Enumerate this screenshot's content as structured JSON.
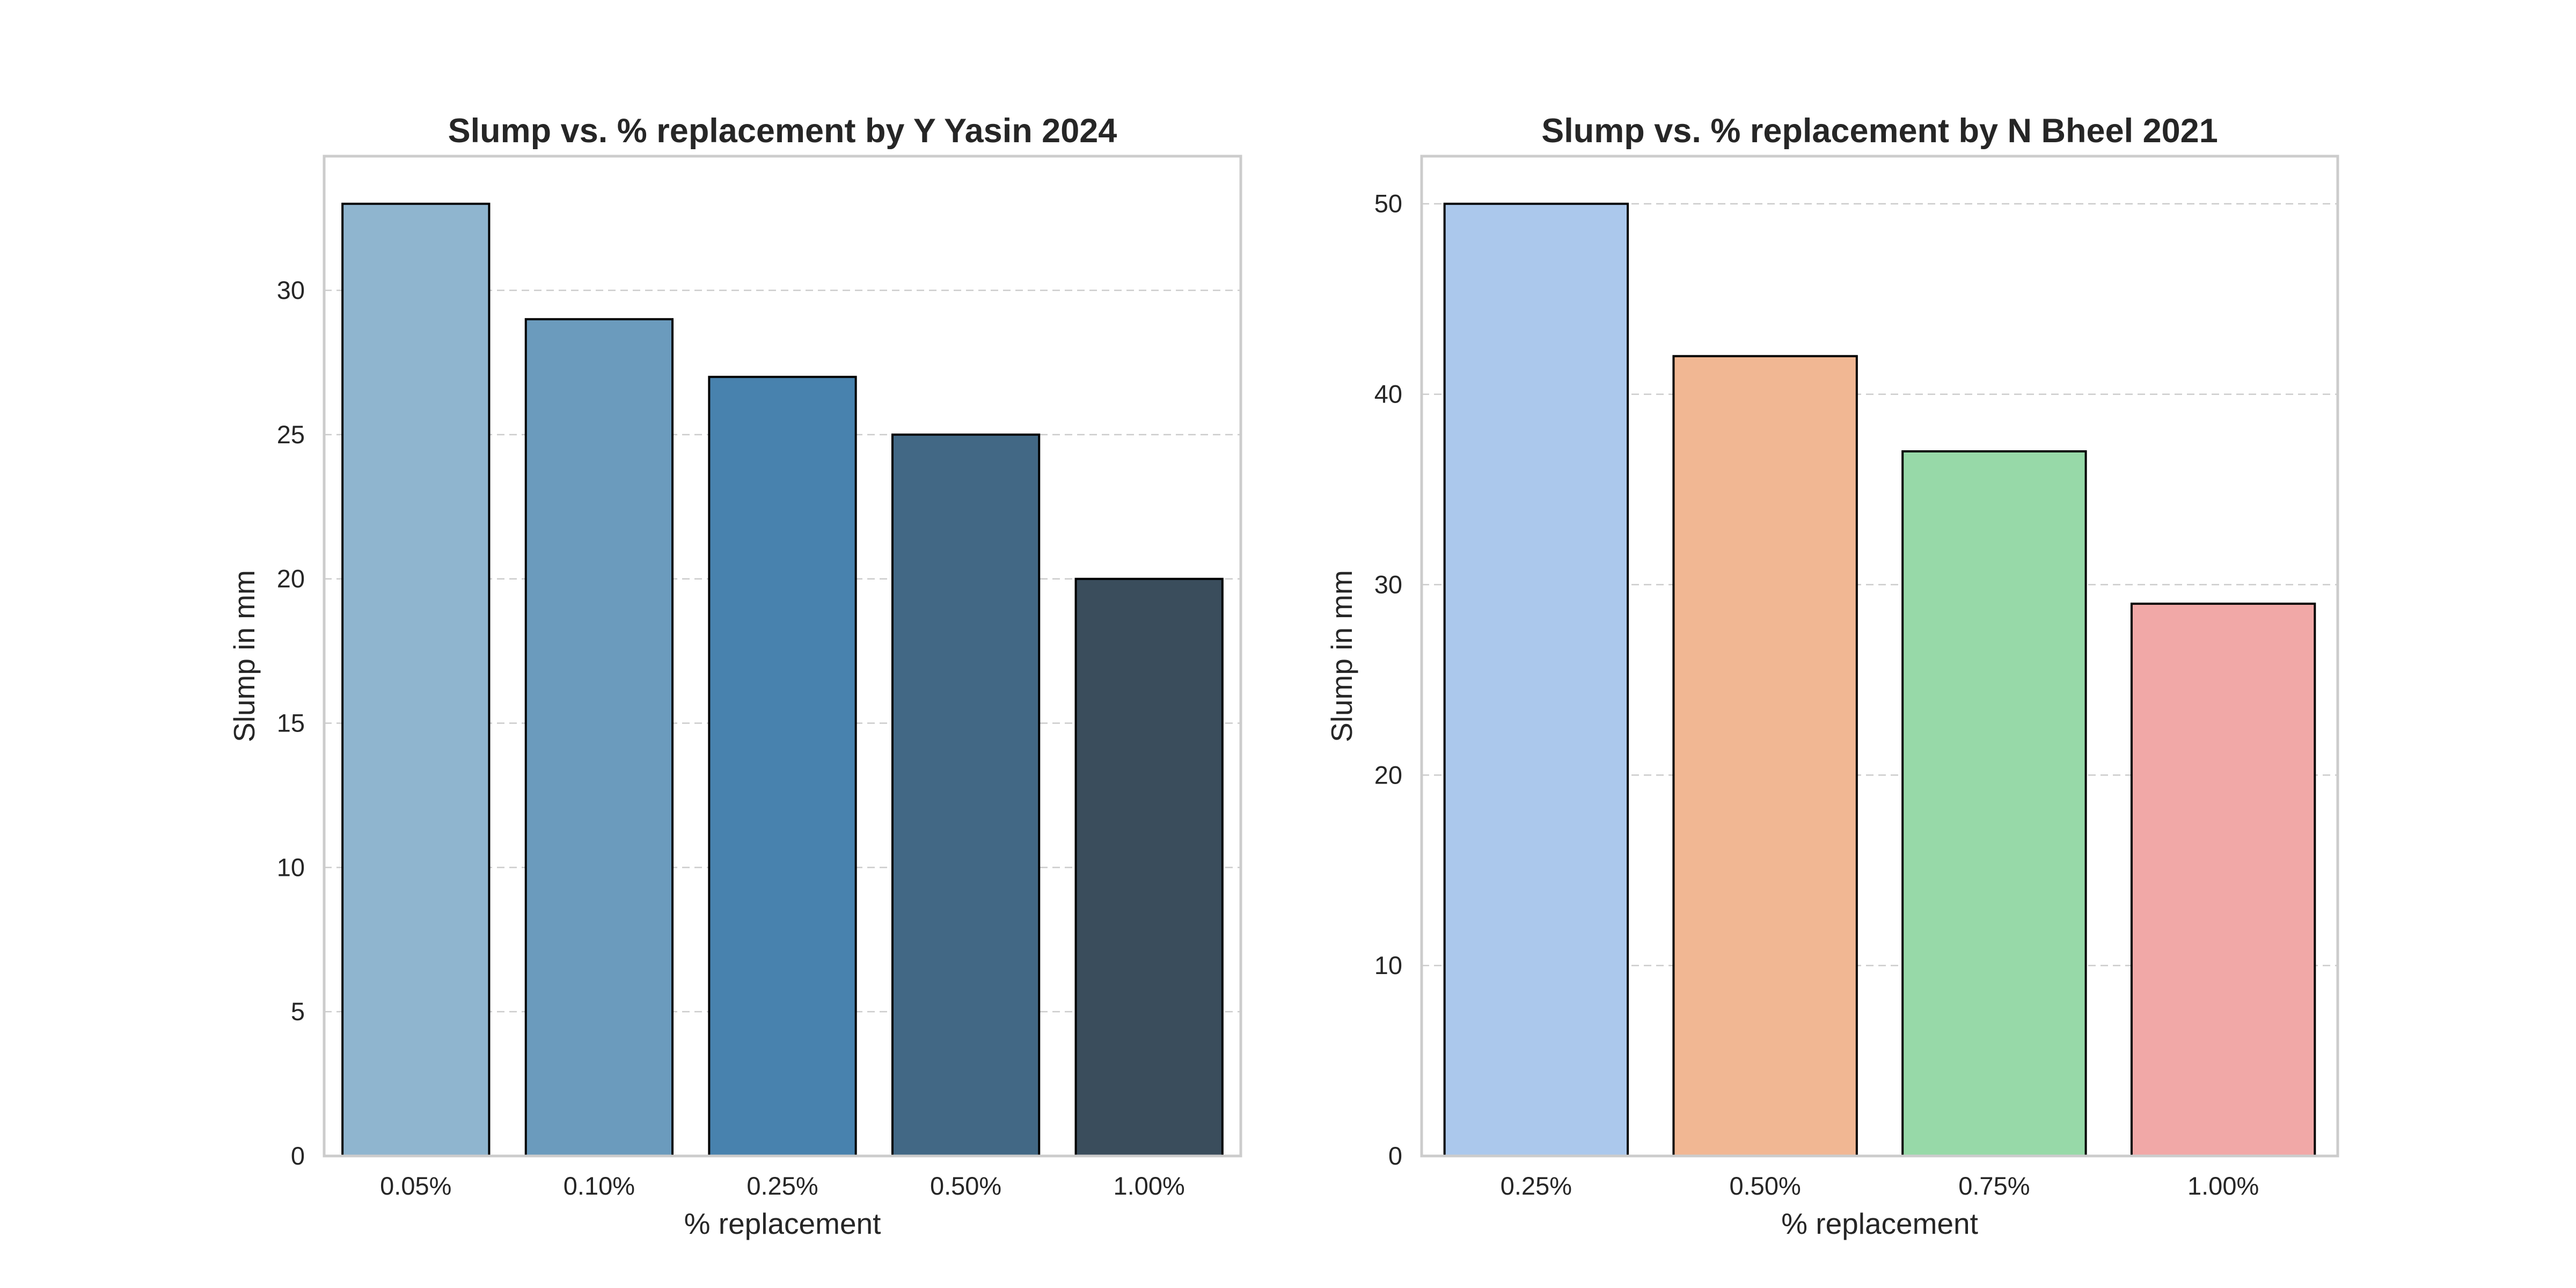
{
  "chart_data": [
    {
      "type": "bar",
      "title": "Slump vs. % replacement by Y Yasin 2024",
      "xlabel": "% replacement",
      "ylabel": "Slump in mm",
      "categories": [
        "0.05%",
        "0.10%",
        "0.25%",
        "0.50%",
        "1.00%"
      ],
      "values": [
        33,
        29,
        27,
        25,
        20
      ],
      "colors": [
        "#8fb5cf",
        "#6b9bbd",
        "#4882ae",
        "#426885",
        "#3a4d5c"
      ],
      "ylim": [
        0,
        34.65
      ],
      "yticks": [
        0,
        5,
        10,
        15,
        20,
        25,
        30
      ],
      "grid": true
    },
    {
      "type": "bar",
      "title": "Slump vs. % replacement by N Bheel 2021",
      "xlabel": "% replacement",
      "ylabel": "Slump in mm",
      "categories": [
        "0.25%",
        "0.50%",
        "0.75%",
        "1.00%"
      ],
      "values": [
        50,
        42,
        37,
        29
      ],
      "colors": [
        "#abc8ec",
        "#f1b793",
        "#97d9a8",
        "#f1a8a7"
      ],
      "ylim": [
        0,
        52.5
      ],
      "yticks": [
        0,
        10,
        20,
        30,
        40,
        50
      ],
      "grid": true
    }
  ]
}
